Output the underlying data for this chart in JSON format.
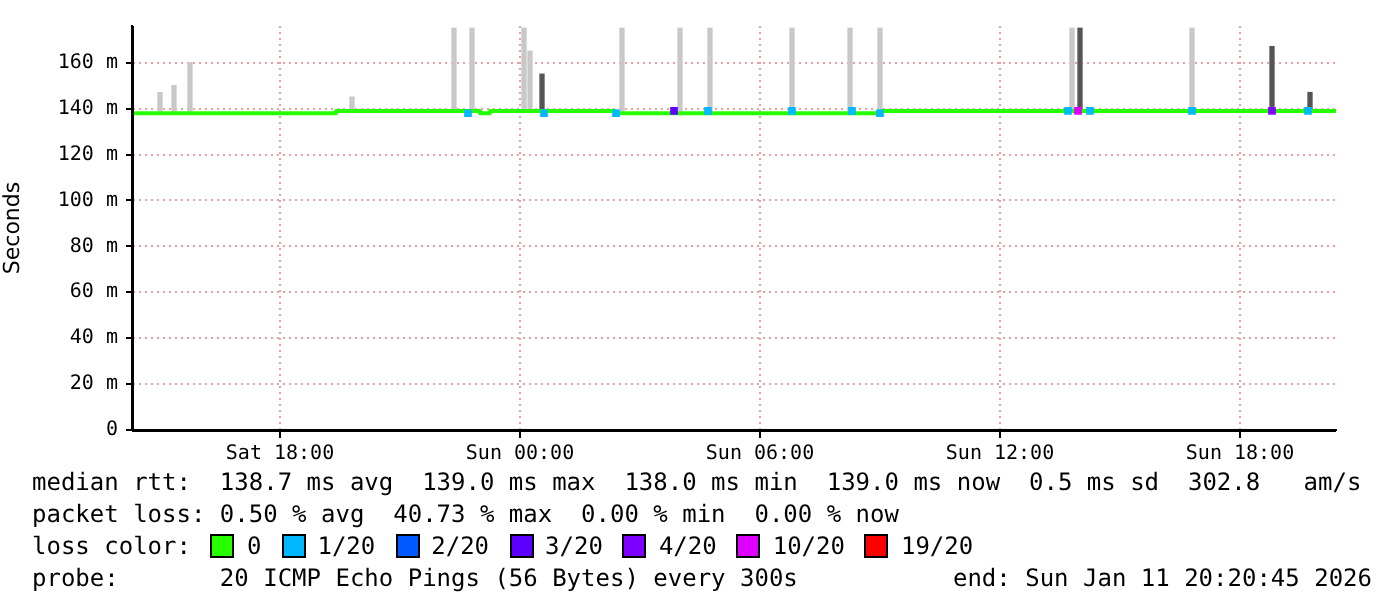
{
  "chart_data": {
    "type": "step",
    "ylabel": "Seconds",
    "xlim": [
      "2026-01-10T14:18",
      "2026-01-11T20:24"
    ],
    "xticks": [
      {
        "value": "2026-01-10T18:00",
        "label": "Sat 18:00"
      },
      {
        "value": "2026-01-11T00:00",
        "label": "Sun 00:00"
      },
      {
        "value": "2026-01-11T06:00",
        "label": "Sun 06:00"
      },
      {
        "value": "2026-01-11T12:00",
        "label": "Sun 12:00"
      },
      {
        "value": "2026-01-11T18:00",
        "label": "Sun 18:00"
      }
    ],
    "ylim": [
      0,
      176
    ],
    "yticks": [
      {
        "value": 0,
        "label": "0"
      },
      {
        "value": 20,
        "label": "20 m"
      },
      {
        "value": 40,
        "label": "40 m"
      },
      {
        "value": 60,
        "label": "60 m"
      },
      {
        "value": 80,
        "label": "80 m"
      },
      {
        "value": 100,
        "label": "100 m"
      },
      {
        "value": 120,
        "label": "120 m"
      },
      {
        "value": 140,
        "label": "140 m"
      },
      {
        "value": 160,
        "label": "160 m"
      }
    ],
    "grid": true,
    "legend": "bottom",
    "series": [
      {
        "type": "bar",
        "color": "#c8c8c8",
        "x": [
          "2026-01-10T15:00",
          "2026-01-10T15:21",
          "2026-01-10T15:45",
          "2026-01-10T19:48",
          "2026-01-10T22:21",
          "2026-01-10T22:48",
          "2026-01-11T00:06",
          "2026-01-11T00:15",
          "2026-01-11T02:33",
          "2026-01-11T04:00",
          "2026-01-11T04:45",
          "2026-01-11T06:48",
          "2026-01-11T08:15",
          "2026-01-11T09:00",
          "2026-01-11T13:48",
          "2026-01-11T16:48"
        ],
        "base": [
          139,
          139,
          139,
          139,
          139,
          139,
          139,
          139,
          139,
          139,
          139,
          139,
          139,
          138,
          139,
          139
        ],
        "values": [
          8,
          11,
          21,
          6,
          36,
          36,
          36,
          26,
          36,
          36,
          36,
          36,
          36,
          37,
          36,
          36
        ]
      },
      {
        "type": "bar",
        "color": "#555555",
        "x": [
          "2026-01-11T00:33",
          "2026-01-11T14:00",
          "2026-01-11T18:48",
          "2026-01-11T19:45"
        ],
        "base": [
          139,
          139,
          139,
          139
        ],
        "values": [
          16,
          36,
          28,
          8
        ]
      },
      {
        "name": "0",
        "color": "#26ff00",
        "x": [
          "2026-01-10T14:18",
          "2026-01-10T19:24",
          "2026-01-10T23:00",
          "2026-01-10T23:15",
          "2026-01-11T02:24",
          "2026-01-11T09:00",
          "2026-01-11T11:18",
          "2026-01-11T20:24"
        ],
        "values": [
          139,
          138,
          139,
          138,
          139,
          138,
          139,
          139
        ]
      },
      {
        "name": "1/20",
        "type": "scatter",
        "marker": "square",
        "color": "#00b8ff",
        "x": [
          "2026-01-10T22:42",
          "2026-01-11T00:36",
          "2026-01-11T02:24",
          "2026-01-11T04:42",
          "2026-01-11T06:48",
          "2026-01-11T08:18",
          "2026-01-11T09:00",
          "2026-01-11T13:42",
          "2026-01-11T14:15",
          "2026-01-11T16:48",
          "2026-01-11T19:42"
        ],
        "values": [
          138,
          138,
          138,
          139,
          139,
          139,
          138,
          139,
          139,
          139,
          139
        ]
      },
      {
        "name": "2/20",
        "type": "scatter",
        "marker": "square",
        "color": "#0059ff"
      },
      {
        "name": "3/20",
        "type": "scatter",
        "marker": "square",
        "color": "#5e00ff",
        "x": [
          "2026-01-11T03:51"
        ],
        "values": [
          139
        ]
      },
      {
        "name": "4/20",
        "type": "scatter",
        "marker": "square",
        "color": "#7e00ff",
        "x": [
          "2026-01-11T18:48"
        ],
        "values": [
          139
        ]
      },
      {
        "name": "10/20",
        "type": "scatter",
        "marker": "square",
        "color": "#dd00ff",
        "x": [
          "2026-01-11T13:57"
        ],
        "values": [
          139
        ]
      },
      {
        "name": "19/20",
        "type": "scatter",
        "marker": "square",
        "color": "#ff0000"
      }
    ],
    "annotations": [
      "median rtt:  138.7 ms avg  139.0 ms max  138.0 ms min  139.0 ms now  0.5 ms sd  302.8   am/s",
      "packet loss: 0.50 % avg  40.73 % max  0.00 % min  0.00 % now",
      "loss color:",
      "probe:       20 ICMP Echo Pings (56 Bytes) every 300s",
      "end: Sun Jan 11 20:20:45 2026"
    ]
  }
}
